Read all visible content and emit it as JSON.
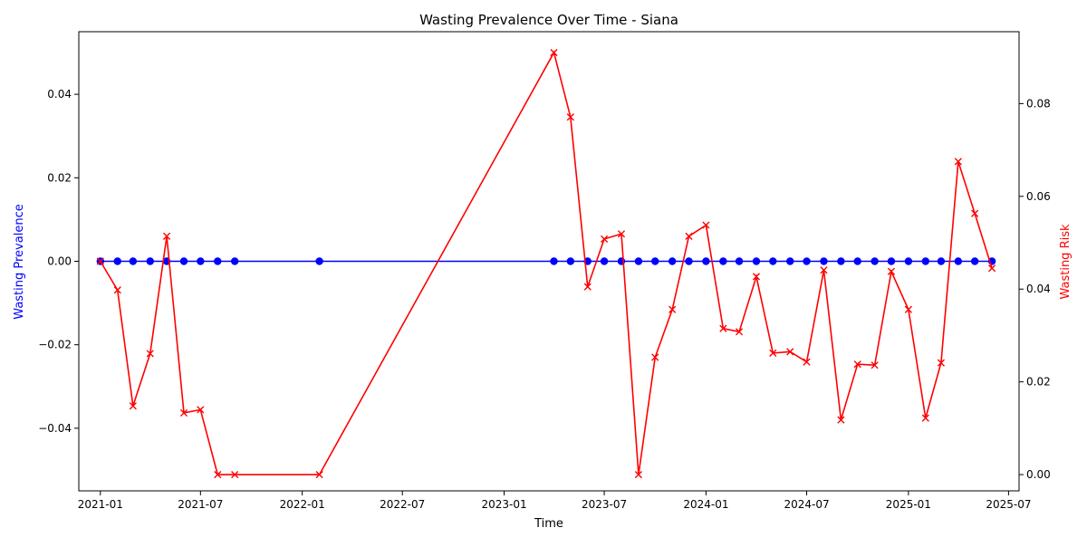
{
  "chart_data": {
    "type": "line",
    "title": "Wasting Prevalence Over Time - Siana",
    "xlabel": "Time",
    "ylabel_left": "Wasting Prevalence",
    "ylabel_right": "Wasting Risk",
    "x_range": [
      "2020-11-23",
      "2025-07-20"
    ],
    "ylim_left": [
      -0.055,
      0.055
    ],
    "ylim_right": [
      -0.0035,
      0.0955
    ],
    "x_ticks": [
      {
        "date": "2021-01-01",
        "label": "2021-01"
      },
      {
        "date": "2021-07-01",
        "label": "2021-07"
      },
      {
        "date": "2022-01-01",
        "label": "2022-01"
      },
      {
        "date": "2022-07-01",
        "label": "2022-07"
      },
      {
        "date": "2023-01-01",
        "label": "2023-01"
      },
      {
        "date": "2023-07-01",
        "label": "2023-07"
      },
      {
        "date": "2024-01-01",
        "label": "2024-01"
      },
      {
        "date": "2024-07-01",
        "label": "2024-07"
      },
      {
        "date": "2025-01-01",
        "label": "2025-01"
      },
      {
        "date": "2025-07-01",
        "label": "2025-07"
      }
    ],
    "y_ticks_left": [
      {
        "value": -0.04,
        "label": "−0.04"
      },
      {
        "value": -0.02,
        "label": "−0.02"
      },
      {
        "value": 0.0,
        "label": "0.00"
      },
      {
        "value": 0.02,
        "label": "0.02"
      },
      {
        "value": 0.04,
        "label": "0.04"
      }
    ],
    "y_ticks_right": [
      {
        "value": 0.0,
        "label": "0.00"
      },
      {
        "value": 0.02,
        "label": "0.02"
      },
      {
        "value": 0.04,
        "label": "0.04"
      },
      {
        "value": 0.06,
        "label": "0.06"
      },
      {
        "value": 0.08,
        "label": "0.08"
      }
    ],
    "grid": false,
    "legend": "none",
    "series": [
      {
        "axis": "left",
        "color": "#0000ff",
        "marker": "circle",
        "x": [
          "2021-01-01",
          "2021-02-01",
          "2021-03-01",
          "2021-04-01",
          "2021-05-01",
          "2021-06-01",
          "2021-07-01",
          "2021-08-01",
          "2021-09-01",
          "2022-02-01",
          "2023-04-01",
          "2023-05-01",
          "2023-06-01",
          "2023-07-01",
          "2023-08-01",
          "2023-09-01",
          "2023-10-01",
          "2023-11-01",
          "2023-12-01",
          "2024-01-01",
          "2024-02-01",
          "2024-03-01",
          "2024-04-01",
          "2024-05-01",
          "2024-06-01",
          "2024-07-01",
          "2024-08-01",
          "2024-09-01",
          "2024-10-01",
          "2024-11-01",
          "2024-12-01",
          "2025-01-01",
          "2025-02-01",
          "2025-03-01",
          "2025-04-01",
          "2025-05-01",
          "2025-06-01"
        ],
        "values": [
          0,
          0,
          0,
          0,
          0,
          0,
          0,
          0,
          0,
          0,
          0,
          0,
          0,
          0,
          0,
          0,
          0,
          0,
          0,
          0,
          0,
          0,
          0,
          0,
          0,
          0,
          0,
          0,
          0,
          0,
          0,
          0,
          0,
          0,
          0,
          0,
          0
        ]
      },
      {
        "axis": "right",
        "color": "#ff0000",
        "marker": "x",
        "x": [
          "2021-01-01",
          "2021-02-01",
          "2021-03-01",
          "2021-04-01",
          "2021-05-01",
          "2021-06-01",
          "2021-07-01",
          "2021-08-01",
          "2021-09-01",
          "2022-02-01",
          "2023-04-01",
          "2023-05-01",
          "2023-06-01",
          "2023-07-01",
          "2023-08-01",
          "2023-09-01",
          "2023-10-01",
          "2023-11-01",
          "2023-12-01",
          "2024-01-01",
          "2024-02-01",
          "2024-03-01",
          "2024-04-01",
          "2024-05-01",
          "2024-06-01",
          "2024-07-01",
          "2024-08-01",
          "2024-09-01",
          "2024-10-01",
          "2024-11-01",
          "2024-12-01",
          "2025-01-01",
          "2025-02-01",
          "2025-03-01",
          "2025-04-01",
          "2025-05-01",
          "2025-06-01"
        ],
        "values": [
          0.046,
          0.0398,
          0.0148,
          0.0261,
          0.0514,
          0.0133,
          0.014,
          0.0,
          0.0,
          0.0,
          0.091,
          0.0771,
          0.0405,
          0.0508,
          0.0519,
          0.0,
          0.0253,
          0.0356,
          0.0514,
          0.0538,
          0.0315,
          0.0308,
          0.0427,
          0.0262,
          0.0265,
          0.0243,
          0.0441,
          0.0118,
          0.0238,
          0.0236,
          0.0438,
          0.0356,
          0.0122,
          0.0241,
          0.0675,
          0.0563,
          0.0445
        ]
      }
    ]
  }
}
